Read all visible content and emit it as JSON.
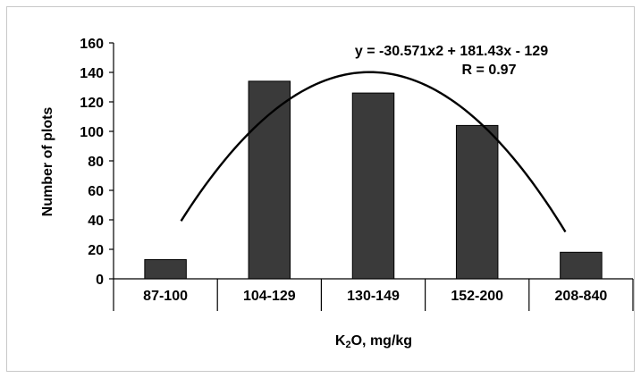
{
  "chart_data": {
    "type": "bar",
    "categories": [
      "87-100",
      "104-129",
      "130-149",
      "152-200",
      "208-840"
    ],
    "values": [
      13,
      134,
      126,
      104,
      18
    ],
    "title": "",
    "xlabel": "K2O, mg/kg",
    "xlabel_main": "K",
    "xlabel_sub": "2",
    "xlabel_rest": "O, mg/kg",
    "ylabel": "Number of plots",
    "ylim": [
      0,
      160
    ],
    "yticks": [
      "0",
      "20",
      "40",
      "60",
      "80",
      "100",
      "120",
      "140",
      "160"
    ],
    "grid": false,
    "legend": "none",
    "bar_color": "#3a3a3a",
    "trendline": {
      "type": "polynomial",
      "order": 2,
      "coefficients": [
        -30.571,
        181.43,
        -129
      ],
      "x_start": 1.15,
      "x_end": 4.85,
      "equation": "y = -30.571x2 + 181.43x - 129",
      "r_label": "R = 0.97"
    }
  }
}
